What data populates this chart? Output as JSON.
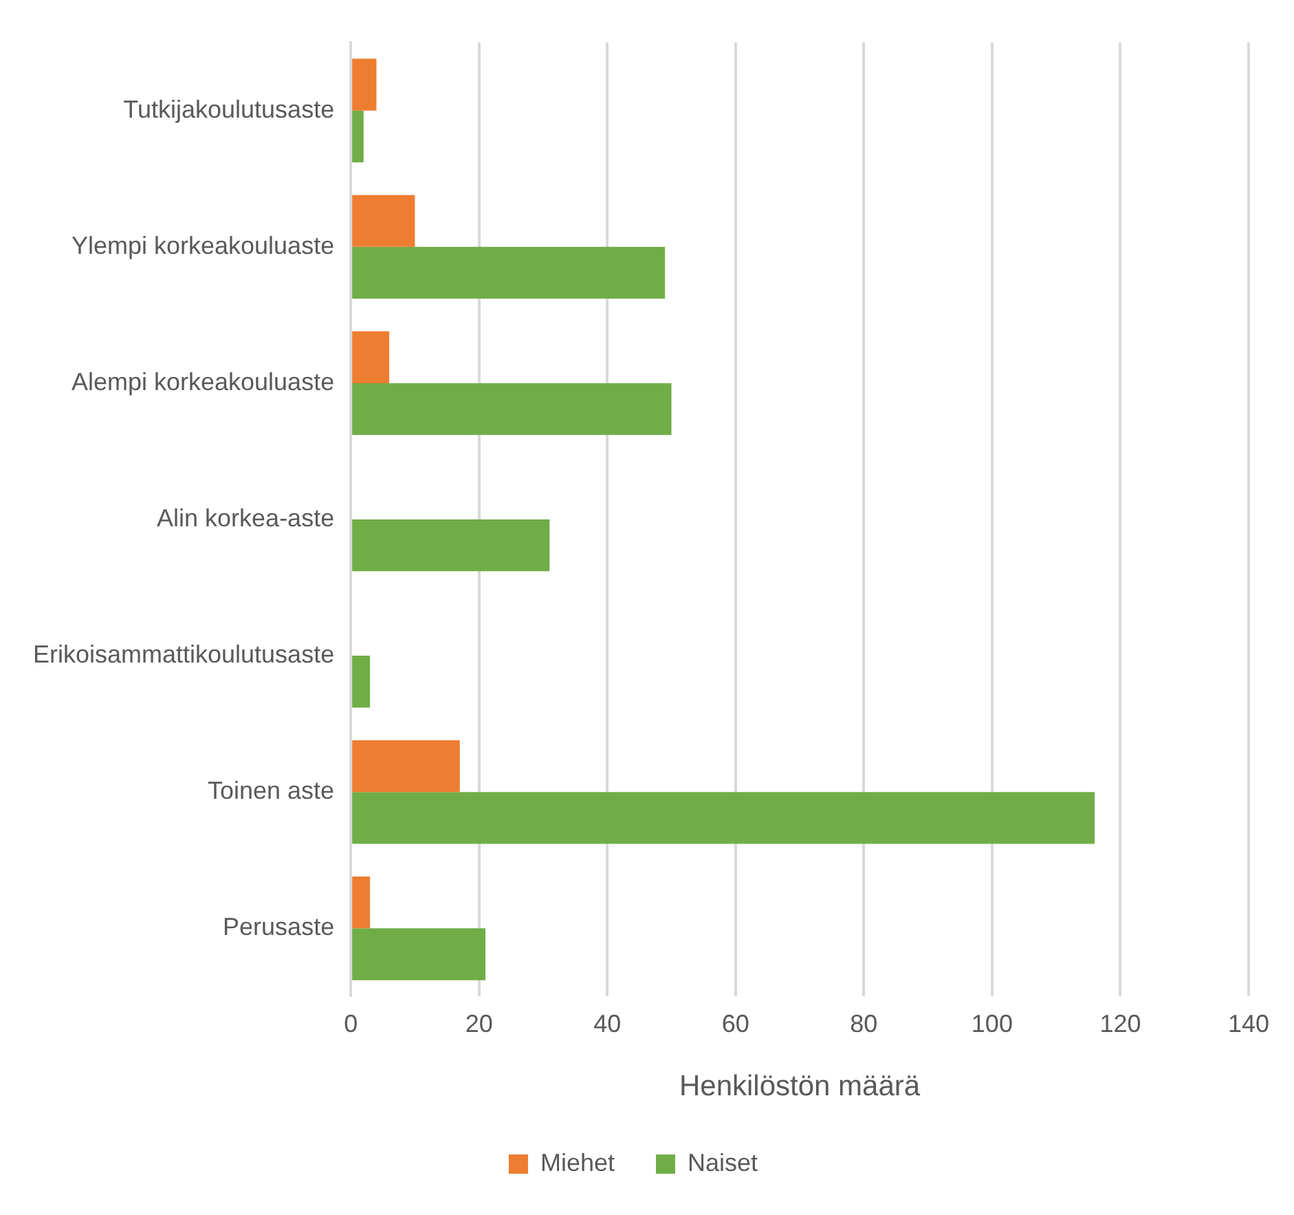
{
  "chart_data": {
    "type": "bar",
    "orientation": "horizontal",
    "xlabel": "Henkilöstön määrä",
    "categories": [
      "Tutkijakoulutusaste",
      "Ylempi korkeakouluaste",
      "Alempi korkeakouluaste",
      "Alin korkea-aste",
      "Erikoisammattikoulutusaste",
      "Toinen aste",
      "Perusaste"
    ],
    "series": [
      {
        "name": "Miehet",
        "color": "#ed7d31",
        "values": [
          4,
          10,
          6,
          0,
          0,
          17,
          3
        ]
      },
      {
        "name": "Naiset",
        "color": "#70ad47",
        "values": [
          2,
          49,
          50,
          31,
          3,
          116,
          21
        ]
      }
    ],
    "xlim": [
      0,
      140
    ],
    "xticks": [
      0,
      20,
      40,
      60,
      80,
      100,
      120,
      140
    ],
    "grid": "x",
    "legend": "bottom"
  }
}
